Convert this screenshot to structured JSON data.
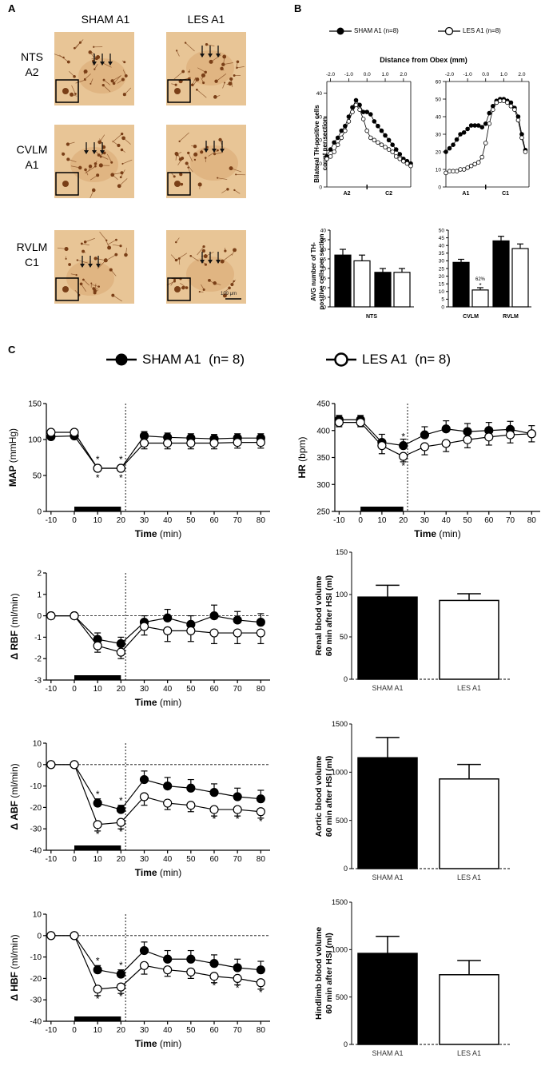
{
  "panel_letters": {
    "a": "A",
    "b": "B",
    "c": "C"
  },
  "panel_a": {
    "col_headers": [
      "SHAM A1",
      "LES A1"
    ],
    "row_labels": [
      [
        "NTS",
        "A2"
      ],
      [
        "CVLM",
        "A1"
      ],
      [
        "RVLM",
        "C1"
      ]
    ],
    "scale_bar": "100 μm",
    "colors": {
      "tissue": "#e8c596",
      "stain": "#7a3f17"
    }
  },
  "panel_b": {
    "legend": {
      "sham": "SHAM A1 (n=8)",
      "les": "LES A1 (n=8)"
    },
    "top_xlabel": "Distance from Obex (mm)",
    "top_ylabel": [
      "Bilateral TH-positive cells",
      "count per section"
    ],
    "bottom_ylabel": [
      "AVG number of TH-",
      "positive cells per section"
    ],
    "percent_annotation": "62%"
  },
  "panel_c": {
    "legend": {
      "sham": "SHAM A1  (n= 8)",
      "les": "LES A1  (n= 8)"
    },
    "bar_categories": [
      "SHAM A1",
      "LES A1"
    ]
  },
  "chart_data": [
    {
      "id": "b_top_left",
      "type": "line",
      "xlabel": "Distance from Obex (mm)",
      "ylabel": "Bilateral TH-positive cells count per section",
      "xlim": [
        -2.2,
        2.4
      ],
      "ylim": [
        0,
        45
      ],
      "xticks": [
        "-2.0",
        "-1.0",
        "0.0",
        "1.0",
        "2.0"
      ],
      "yticks": [
        "0",
        "10",
        "20",
        "30",
        "40"
      ],
      "region_labels": [
        "A2",
        "C2"
      ],
      "x": [
        -2.2,
        -2.0,
        -1.8,
        -1.6,
        -1.4,
        -1.2,
        -1.0,
        -0.8,
        -0.6,
        -0.4,
        -0.2,
        0.0,
        0.2,
        0.4,
        0.6,
        0.8,
        1.0,
        1.2,
        1.4,
        1.6,
        1.8,
        2.0,
        2.2,
        2.4
      ],
      "series": [
        {
          "name": "SHAM A1 (n=8)",
          "values": [
            13,
            16,
            19,
            21,
            24,
            26,
            30,
            34,
            37,
            35,
            32,
            32,
            31,
            28,
            26,
            24,
            22,
            20,
            18,
            16,
            14,
            12,
            11,
            10
          ]
        },
        {
          "name": "LES A1 (n=8)",
          "values": [
            12,
            13,
            15,
            18,
            21,
            24,
            28,
            32,
            35,
            33,
            29,
            24,
            21,
            20,
            19,
            18,
            17,
            16,
            15,
            13,
            12,
            11,
            10,
            9
          ]
        }
      ]
    },
    {
      "id": "b_top_right",
      "type": "line",
      "xlim": [
        -2.2,
        2.4
      ],
      "ylim": [
        0,
        60
      ],
      "xticks": [
        "-2.0",
        "-1.0",
        "0.0",
        "1.0",
        "2.0"
      ],
      "yticks": [
        "0",
        "10",
        "20",
        "30",
        "40",
        "50",
        "60"
      ],
      "region_labels": [
        "A1",
        "C1"
      ],
      "x": [
        -2.2,
        -2.0,
        -1.8,
        -1.6,
        -1.4,
        -1.2,
        -1.0,
        -0.8,
        -0.6,
        -0.4,
        -0.2,
        0.0,
        0.2,
        0.4,
        0.6,
        0.8,
        1.0,
        1.2,
        1.4,
        1.6,
        1.8,
        2.0,
        2.2
      ],
      "series": [
        {
          "name": "SHAM A1 (n=8)",
          "values": [
            20,
            22,
            24,
            27,
            30,
            31,
            33,
            35,
            35,
            35,
            34,
            36,
            42,
            46,
            49,
            50,
            50,
            49,
            48,
            45,
            40,
            30,
            21
          ]
        },
        {
          "name": "LES A1 (n=8)",
          "values": [
            8,
            9,
            9,
            9,
            10,
            10,
            11,
            12,
            13,
            14,
            17,
            25,
            36,
            44,
            48,
            49,
            49,
            48,
            46,
            44,
            38,
            28,
            20
          ]
        }
      ]
    },
    {
      "id": "b_bottom_left",
      "type": "bar",
      "ylabel": "AVG number of TH-positive cells per section",
      "xlabel": "NTS",
      "ylim": [
        0,
        40
      ],
      "yticks": [
        "0",
        "5",
        "10",
        "15",
        "20",
        "25",
        "30",
        "35",
        "40"
      ],
      "bars": [
        {
          "series": "SHAM A1",
          "value": 27,
          "err": 3
        },
        {
          "series": "LES A1",
          "value": 24,
          "err": 3
        },
        {
          "series": "SHAM A1",
          "value": 18,
          "err": 2
        },
        {
          "series": "LES A1",
          "value": 18,
          "err": 2
        }
      ]
    },
    {
      "id": "b_bottom_right",
      "type": "bar",
      "categories": [
        "CVLM",
        "RVLM"
      ],
      "ylim": [
        0,
        50
      ],
      "yticks": [
        "0",
        "5",
        "10",
        "15",
        "20",
        "25",
        "30",
        "35",
        "40",
        "45",
        "50"
      ],
      "bars": [
        {
          "series": "SHAM A1",
          "value": 29,
          "err": 2
        },
        {
          "series": "LES A1",
          "value": 11,
          "err": 1.5
        },
        {
          "series": "SHAM A1",
          "value": 43,
          "err": 3
        },
        {
          "series": "LES A1",
          "value": 38,
          "err": 3
        }
      ]
    },
    {
      "id": "c_map",
      "type": "line",
      "ylabel": "MAP (mmHg)",
      "xlabel": "Time (min)",
      "ylim": [
        0,
        150
      ],
      "yticks": [
        "0",
        "50",
        "100",
        "150"
      ],
      "xlim": [
        -12,
        84
      ],
      "xticks": [
        "-10",
        "0",
        "10",
        "20",
        "30",
        "40",
        "50",
        "60",
        "70",
        "80"
      ],
      "dashed_x": 22,
      "hsi_bar": [
        0,
        20
      ],
      "x": [
        -10,
        0,
        10,
        20,
        30,
        40,
        50,
        60,
        70,
        80
      ],
      "series": [
        {
          "name": "SHAM A1",
          "values": [
            104,
            105,
            60,
            60,
            105,
            103,
            102,
            101,
            102,
            102
          ],
          "err": [
            6,
            6,
            3,
            3,
            6,
            6,
            6,
            6,
            6,
            6
          ]
        },
        {
          "name": "LES A1",
          "values": [
            110,
            110,
            60,
            60,
            95,
            95,
            95,
            95,
            96,
            96
          ],
          "err": [
            6,
            6,
            3,
            3,
            8,
            8,
            8,
            8,
            8,
            8
          ]
        }
      ],
      "sig_x": [
        10,
        20
      ]
    },
    {
      "id": "c_hr",
      "type": "line",
      "ylabel": "HR (bpm)",
      "xlabel": "Time (min)",
      "ylim": [
        250,
        450
      ],
      "yticks": [
        "250",
        "300",
        "350",
        "400",
        "450"
      ],
      "xlim": [
        -12,
        84
      ],
      "xticks": [
        "-10",
        "0",
        "10",
        "20",
        "30",
        "40",
        "50",
        "60",
        "70",
        "80"
      ],
      "dashed_x": 22,
      "hsi_bar": [
        0,
        20
      ],
      "x": [
        -10,
        0,
        10,
        20,
        30,
        40,
        50,
        60,
        70,
        80
      ],
      "series": [
        {
          "name": "SHAM A1",
          "values": [
            420,
            420,
            378,
            372,
            392,
            403,
            398,
            400,
            402,
            394
          ],
          "err": [
            8,
            8,
            15,
            12,
            15,
            15,
            15,
            15,
            15,
            15
          ]
        },
        {
          "name": "LES A1",
          "values": [
            415,
            415,
            372,
            352,
            370,
            376,
            383,
            388,
            392,
            394
          ],
          "err": [
            8,
            8,
            15,
            10,
            15,
            15,
            15,
            15,
            15,
            15
          ]
        }
      ],
      "sig_x": [
        20
      ]
    },
    {
      "id": "c_rbf",
      "type": "line",
      "ylabel": "Δ RBF (ml/min)",
      "xlabel": "Time (min)",
      "ylim": [
        -3,
        2
      ],
      "yticks": [
        "-3",
        "-2",
        "-1",
        "0",
        "1",
        "2"
      ],
      "xlim": [
        -12,
        84
      ],
      "xticks": [
        "-10",
        "0",
        "10",
        "20",
        "30",
        "40",
        "50",
        "60",
        "70",
        "80"
      ],
      "dashed_x": 22,
      "zero_line": 0,
      "hsi_bar": [
        0,
        20
      ],
      "x": [
        -10,
        0,
        10,
        20,
        30,
        40,
        50,
        60,
        70,
        80
      ],
      "series": [
        {
          "name": "SHAM A1",
          "values": [
            0,
            0,
            -1.1,
            -1.3,
            -0.3,
            -0.1,
            -0.4,
            0,
            -0.2,
            -0.3
          ],
          "err": [
            0.1,
            0.1,
            0.3,
            0.3,
            0.3,
            0.4,
            0.4,
            0.5,
            0.4,
            0.4
          ]
        },
        {
          "name": "LES A1",
          "values": [
            0,
            0,
            -1.4,
            -1.7,
            -0.5,
            -0.7,
            -0.7,
            -0.8,
            -0.8,
            -0.8
          ],
          "err": [
            0.1,
            0.1,
            0.3,
            0.3,
            0.4,
            0.5,
            0.5,
            0.5,
            0.5,
            0.5
          ]
        }
      ]
    },
    {
      "id": "c_renal_vol",
      "type": "bar",
      "ylabel": "Renal blood volume 60 min after HSI (ml)",
      "ylim": [
        0,
        150
      ],
      "yticks": [
        "0",
        "50",
        "100",
        "150"
      ],
      "categories": [
        "SHAM A1",
        "LES A1"
      ],
      "values": [
        97,
        93
      ],
      "err": [
        14,
        8
      ]
    },
    {
      "id": "c_abf",
      "type": "line",
      "ylabel": "Δ ABF (ml/min)",
      "xlabel": "Time (min)",
      "ylim": [
        -40,
        10
      ],
      "yticks": [
        "-40",
        "-30",
        "-20",
        "-10",
        "0",
        "10"
      ],
      "xlim": [
        -12,
        84
      ],
      "xticks": [
        "-10",
        "0",
        "10",
        "20",
        "30",
        "40",
        "50",
        "60",
        "70",
        "80"
      ],
      "dashed_x": 22,
      "zero_line": 0,
      "hsi_bar": [
        0,
        20
      ],
      "x": [
        -10,
        0,
        10,
        20,
        30,
        40,
        50,
        60,
        70,
        80
      ],
      "series": [
        {
          "name": "SHAM A1",
          "values": [
            0,
            0,
            -18,
            -21,
            -7,
            -10,
            -11,
            -13,
            -15,
            -16
          ],
          "err": [
            0.5,
            0.5,
            2,
            2,
            4,
            4,
            4,
            4,
            4,
            4
          ]
        },
        {
          "name": "LES A1",
          "values": [
            0,
            0,
            -28,
            -27,
            -15,
            -18,
            -19,
            -21,
            -21,
            -22
          ],
          "err": [
            0.5,
            0.5,
            3,
            3,
            4,
            3,
            3,
            3,
            3,
            3
          ]
        }
      ],
      "sig_x": [
        10,
        20,
        60,
        70,
        80
      ]
    },
    {
      "id": "c_aortic_vol",
      "type": "bar",
      "ylabel": "Aortic blood volume 60 min after HSI (ml)",
      "ylim": [
        0,
        1500
      ],
      "yticks": [
        "0",
        "500",
        "1000",
        "1500"
      ],
      "categories": [
        "SHAM A1",
        "LES A1"
      ],
      "values": [
        1150,
        930
      ],
      "err": [
        210,
        150
      ]
    },
    {
      "id": "c_hbf",
      "type": "line",
      "ylabel": "Δ HBF (ml/min)",
      "xlabel": "Time (min)",
      "ylim": [
        -40,
        10
      ],
      "yticks": [
        "-40",
        "-30",
        "-20",
        "-10",
        "0",
        "10"
      ],
      "xlim": [
        -12,
        84
      ],
      "xticks": [
        "-10",
        "0",
        "10",
        "20",
        "30",
        "40",
        "50",
        "60",
        "70",
        "80"
      ],
      "dashed_x": 22,
      "zero_line": 0,
      "hsi_bar": [
        0,
        20
      ],
      "x": [
        -10,
        0,
        10,
        20,
        30,
        40,
        50,
        60,
        70,
        80
      ],
      "series": [
        {
          "name": "SHAM A1",
          "values": [
            0,
            0,
            -16,
            -18,
            -7,
            -11,
            -11,
            -13,
            -15,
            -16
          ],
          "err": [
            0.5,
            0.5,
            2,
            2,
            4,
            4,
            4,
            4,
            4,
            4
          ]
        },
        {
          "name": "LES A1",
          "values": [
            0,
            0,
            -25,
            -24,
            -14,
            -16,
            -17,
            -19,
            -20,
            -22
          ],
          "err": [
            0.5,
            0.5,
            3,
            3,
            4,
            3,
            3,
            3,
            3,
            3
          ]
        }
      ],
      "sig_x": [
        10,
        20,
        60,
        70,
        80
      ]
    },
    {
      "id": "c_hindlimb_vol",
      "type": "bar",
      "ylabel": "Hindlimb blood volume 60 min after HSI (ml)",
      "ylim": [
        0,
        1500
      ],
      "yticks": [
        "0",
        "500",
        "1000",
        "1500"
      ],
      "categories": [
        "SHAM A1",
        "LES A1"
      ],
      "values": [
        960,
        735
      ],
      "err": [
        180,
        150
      ]
    }
  ]
}
